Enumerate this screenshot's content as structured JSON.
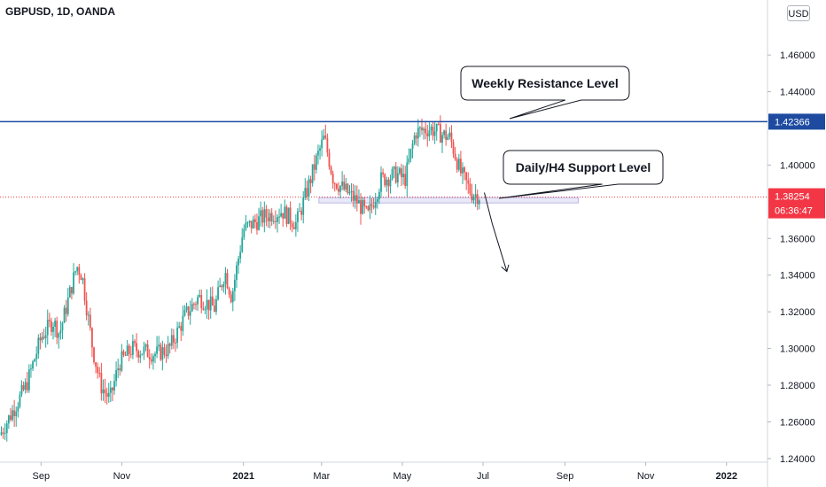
{
  "header": {
    "symbol": "GBPUSD, 1D, OANDA",
    "currency": "USD"
  },
  "chart_data": {
    "type": "candlestick",
    "title": "GBPUSD, 1D, OANDA",
    "y_ticks": [
      1.24,
      1.26,
      1.28,
      1.3,
      1.32,
      1.34,
      1.36,
      1.4,
      1.44,
      1.46
    ],
    "y_tick_labels": [
      "1.24000",
      "1.26000",
      "1.28000",
      "1.30000",
      "1.32000",
      "1.34000",
      "1.36000",
      "1.40000",
      "1.44000",
      "1.46000"
    ],
    "ylim": [
      1.238,
      1.49
    ],
    "x_labels": [
      "Sep",
      "Nov",
      "2021",
      "Mar",
      "May",
      "Jul",
      "Sep",
      "Nov",
      "2022"
    ],
    "x_label_days": [
      31,
      92,
      184,
      243,
      304,
      365,
      427,
      488,
      549
    ],
    "xlim": [
      0,
      580
    ],
    "price_path": [
      [
        0,
        1.253
      ],
      [
        20,
        1.28
      ],
      [
        31,
        1.306
      ],
      [
        40,
        1.315
      ],
      [
        45,
        1.308
      ],
      [
        58,
        1.345
      ],
      [
        62,
        1.34
      ],
      [
        70,
        1.3
      ],
      [
        76,
        1.28
      ],
      [
        83,
        1.272
      ],
      [
        90,
        1.292
      ],
      [
        100,
        1.3
      ],
      [
        118,
        1.297
      ],
      [
        128,
        1.3
      ],
      [
        140,
        1.318
      ],
      [
        150,
        1.328
      ],
      [
        162,
        1.322
      ],
      [
        170,
        1.342
      ],
      [
        175,
        1.328
      ],
      [
        184,
        1.365
      ],
      [
        200,
        1.372
      ],
      [
        213,
        1.375
      ],
      [
        224,
        1.368
      ],
      [
        232,
        1.386
      ],
      [
        240,
        1.405
      ],
      [
        245,
        1.415
      ],
      [
        252,
        1.392
      ],
      [
        258,
        1.388
      ],
      [
        270,
        1.38
      ],
      [
        278,
        1.372
      ],
      [
        288,
        1.392
      ],
      [
        300,
        1.395
      ],
      [
        306,
        1.392
      ],
      [
        314,
        1.418
      ],
      [
        325,
        1.42
      ],
      [
        333,
        1.417
      ],
      [
        340,
        1.415
      ],
      [
        348,
        1.396
      ],
      [
        356,
        1.385
      ],
      [
        363,
        1.383
      ]
    ],
    "resistance": {
      "label": "Weekly Resistance Level",
      "value": 1.42366,
      "value_label": "1.42366",
      "color": "#1e4ba0"
    },
    "support": {
      "label": "Daily/H4 Support Level",
      "value": 1.3808,
      "color": "#b8b8e8"
    },
    "current_price": {
      "value": 1.38254,
      "value_label": "1.38254",
      "countdown": "06:36:47",
      "color": "#f23645"
    },
    "projection": [
      [
        366,
        1.385
      ],
      [
        372,
        1.368
      ],
      [
        383,
        1.342
      ]
    ],
    "up_color": "#26a69a",
    "down_color": "#ef5350"
  }
}
